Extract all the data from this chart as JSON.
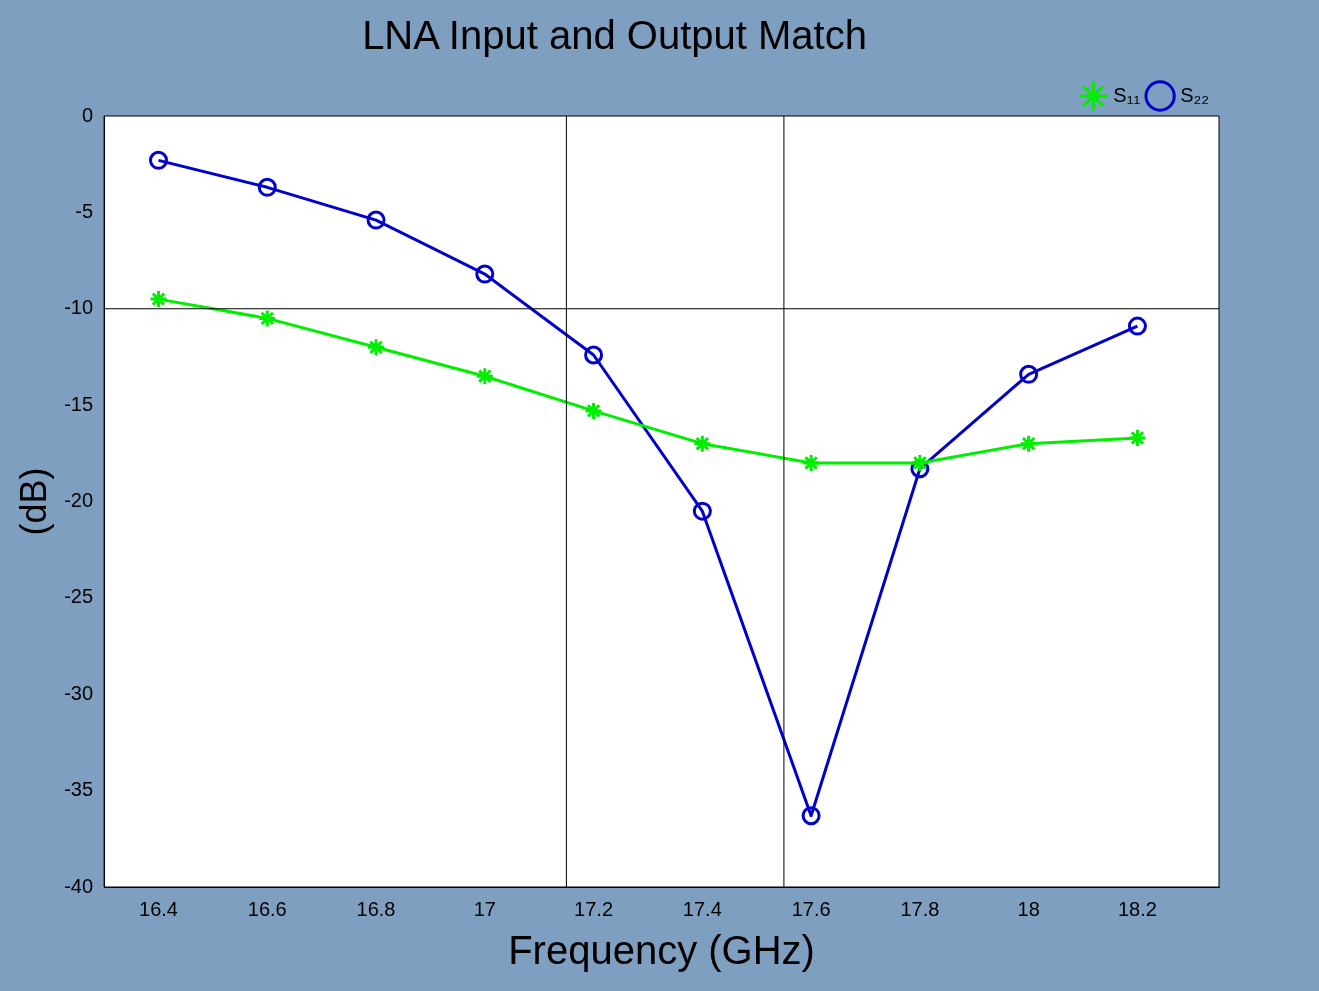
{
  "chart_data": {
    "type": "line",
    "title": "LNA Input and Output Match",
    "xlabel": "Frequency (GHz)",
    "ylabel": "(dB)",
    "x": [
      16.4,
      16.6,
      16.8,
      17,
      17.2,
      17.4,
      17.6,
      17.8,
      18,
      18.2
    ],
    "series": [
      {
        "name": "S₁₁",
        "color": "#00ee00",
        "marker": "cross",
        "values": [
          -9.5,
          -10.5,
          -12,
          -13.5,
          -15.3,
          -17,
          -18,
          -18,
          -17,
          -16.7
        ]
      },
      {
        "name": "S₂₂",
        "color": "#0000cc",
        "marker": "circle",
        "values": [
          -2.3,
          -3.7,
          -5.4,
          -8.2,
          -12.4,
          -20.5,
          -36.3,
          -18.3,
          -13.4,
          -10.9
        ]
      }
    ],
    "xlim": [
      16.3,
      18.35
    ],
    "xticks": [
      16.4,
      16.6,
      16.8,
      17,
      17.2,
      17.4,
      17.6,
      17.8,
      18,
      18.2
    ],
    "ylim": [
      -40,
      0
    ],
    "yticks": [
      -40,
      -35,
      -30,
      -25,
      -20,
      -15,
      -10,
      -5,
      0
    ],
    "ref_lines": [
      {
        "axis": "x",
        "value": 17.15,
        "color": "#000000"
      },
      {
        "axis": "x",
        "value": 17.55,
        "color": "#000000"
      },
      {
        "axis": "y",
        "value": -10,
        "color": "#000000"
      }
    ],
    "grid": false,
    "legend": "top right",
    "line_style": "solid"
  }
}
